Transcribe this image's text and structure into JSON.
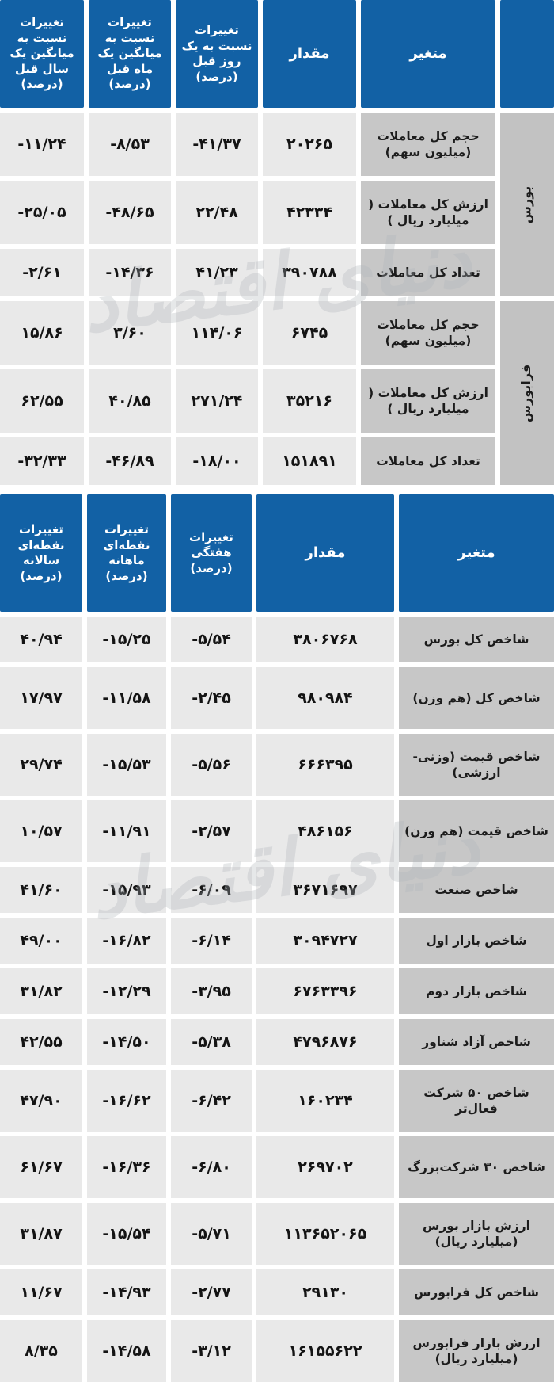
{
  "colors": {
    "header_blue": "#1261a5",
    "label_gray": "#c7c7c7",
    "group_gray": "#c2c2c2",
    "value_gray": "#e9e9e9"
  },
  "watermark": {
    "text": "دنیای اقتصاد"
  },
  "table1": {
    "headers": {
      "variable": "متغیر",
      "value": "مقدار",
      "day": "تغییرات نسبت به یک روز قبل (درصد)",
      "month": "تغییرات نسبت به میانگین یک ماه قبل (درصد)",
      "year": "تغییرات نسبت به میانگین یک سال قبل (درصد)"
    },
    "groups": [
      {
        "label": "بورس",
        "rows": [
          {
            "label": "حجم کل معاملات (میلیون سهم)",
            "value": "۲۰۲۶۵",
            "day": "-۴۱/۳۷",
            "month": "-۸/۵۳",
            "year": "-۱۱/۲۴"
          },
          {
            "label": "ارزش کل معاملات ( میلیارد ریال )",
            "value": "۴۲۳۳۴",
            "day": "۲۲/۴۸",
            "month": "-۴۸/۶۵",
            "year": "-۲۵/۰۵"
          },
          {
            "label": "تعداد کل معاملات",
            "value": "۳۹۰۷۸۸",
            "day": "۴۱/۲۳",
            "month": "-۱۴/۳۶",
            "year": "-۲/۶۱"
          }
        ]
      },
      {
        "label": "فرابورس",
        "rows": [
          {
            "label": "حجم کل معاملات (میلیون سهم)",
            "value": "۶۷۴۵",
            "day": "۱۱۴/۰۶",
            "month": "۳/۶۰",
            "year": "۱۵/۸۶"
          },
          {
            "label": "ارزش کل معاملات ( میلیارد ریال )",
            "value": "۳۵۲۱۶",
            "day": "۲۷۱/۲۴",
            "month": "۴۰/۸۵",
            "year": "۶۲/۵۵"
          },
          {
            "label": "تعداد کل معاملات",
            "value": "۱۵۱۸۹۱",
            "day": "-۱۸/۰۰",
            "month": "-۴۶/۸۹",
            "year": "-۳۲/۳۳"
          }
        ]
      }
    ]
  },
  "table2": {
    "headers": {
      "variable": "متغیر",
      "value": "مقدار",
      "weekly": "تغییرات هفتگی (درصد)",
      "monthly": "تغییرات نقطه‌ای ماهانه (درصد)",
      "yearly": "تغییرات نقطه‌ای سالانه (درصد)"
    },
    "rows": [
      {
        "label": "شاخص کل بورس",
        "value": "۳۸۰۶۷۶۸",
        "weekly": "-۵/۵۴",
        "monthly": "-۱۵/۲۵",
        "yearly": "۴۰/۹۴"
      },
      {
        "label": "شاخص کل (هم وزن)",
        "value": "۹۸۰۹۸۴",
        "weekly": "-۲/۴۵",
        "monthly": "-۱۱/۵۸",
        "yearly": "۱۷/۹۷"
      },
      {
        "label": "شاخص قیمت (وزنی- ارزشی)",
        "value": "۶۶۶۳۹۵",
        "weekly": "-۵/۵۶",
        "monthly": "-۱۵/۵۳",
        "yearly": "۲۹/۷۴"
      },
      {
        "label": "شاخص قیمت (هم وزن)",
        "value": "۴۸۶۱۵۶",
        "weekly": "-۲/۵۷",
        "monthly": "-۱۱/۹۱",
        "yearly": "۱۰/۵۷"
      },
      {
        "label": "شاخص صنعت",
        "value": "۳۶۷۱۶۹۷",
        "weekly": "-۶/۰۹",
        "monthly": "-۱۵/۹۳",
        "yearly": "۴۱/۶۰"
      },
      {
        "label": "شاخص بازار اول",
        "value": "۳۰۹۴۷۲۷",
        "weekly": "-۶/۱۴",
        "monthly": "-۱۶/۸۲",
        "yearly": "۴۹/۰۰"
      },
      {
        "label": "شاخص بازار دوم",
        "value": "۶۷۶۳۳۹۶",
        "weekly": "-۳/۹۵",
        "monthly": "-۱۲/۲۹",
        "yearly": "۳۱/۸۲"
      },
      {
        "label": "شاخص آزاد شناور",
        "value": "۴۷۹۶۸۷۶",
        "weekly": "-۵/۳۸",
        "monthly": "-۱۴/۵۰",
        "yearly": "۴۲/۵۵"
      },
      {
        "label": "شاخص ۵۰ شرکت فعال‌تر",
        "value": "۱۶۰۲۳۴",
        "weekly": "-۶/۴۲",
        "monthly": "-۱۶/۶۲",
        "yearly": "۴۷/۹۰"
      },
      {
        "label": "شاخص ۳۰ شرکت‌بزرگ",
        "value": "۲۶۹۷۰۲",
        "weekly": "-۶/۸۰",
        "monthly": "-۱۶/۳۶",
        "yearly": "۶۱/۶۷"
      },
      {
        "label": "ارزش بازار بورس (میلیارد ریال)",
        "value": "۱۱۳۶۵۲۰۶۵",
        "weekly": "-۵/۷۱",
        "monthly": "-۱۵/۵۴",
        "yearly": "۳۱/۸۷"
      },
      {
        "label": "شاخص کل فرابورس",
        "value": "۲۹۱۳۰",
        "weekly": "-۲/۷۷",
        "monthly": "-۱۴/۹۳",
        "yearly": "۱۱/۶۷"
      },
      {
        "label": "ارزش بازار فرابورس (میلیارد ریال)",
        "value": "۱۶۱۵۵۶۲۲",
        "weekly": "-۳/۱۲",
        "monthly": "-۱۴/۵۸",
        "yearly": "۸/۳۵"
      }
    ]
  }
}
